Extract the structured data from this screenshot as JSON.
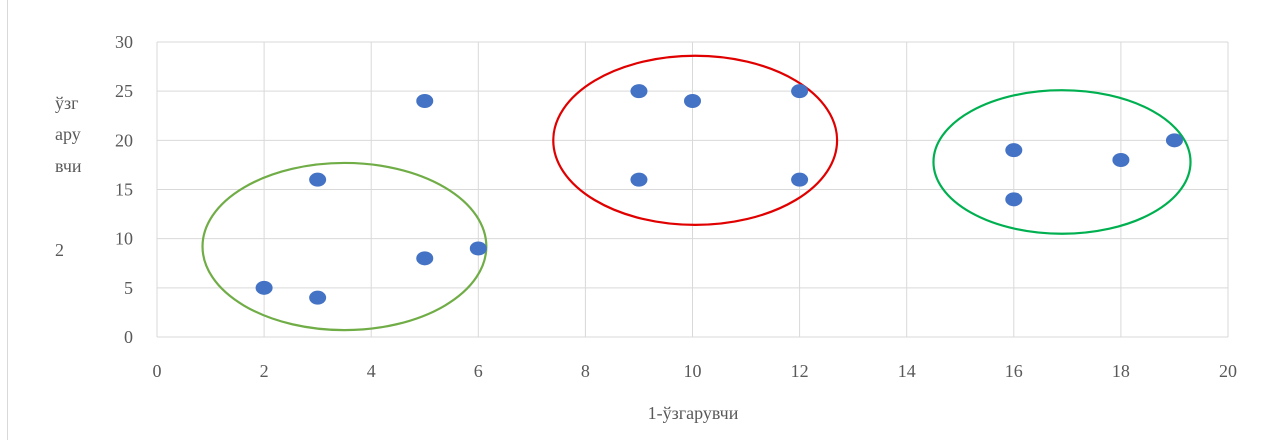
{
  "chart_data": {
    "type": "scatter",
    "title": "",
    "xlabel": "1-ўзгарувчи",
    "ylabel_lines": [
      "ўзг",
      "ару",
      "вчи",
      "2"
    ],
    "xlim": [
      0,
      20
    ],
    "ylim": [
      0,
      30
    ],
    "x_ticks": [
      0,
      2,
      4,
      6,
      8,
      10,
      12,
      14,
      16,
      18,
      20
    ],
    "y_ticks": [
      0,
      5,
      10,
      15,
      20,
      25,
      30
    ],
    "grid": true,
    "legend": "none",
    "point_color": "#4472c4",
    "series": [
      {
        "points": [
          {
            "x": 2,
            "y": 5
          },
          {
            "x": 3,
            "y": 4
          },
          {
            "x": 3,
            "y": 16
          },
          {
            "x": 5,
            "y": 8
          },
          {
            "x": 5,
            "y": 24
          },
          {
            "x": 6,
            "y": 9
          },
          {
            "x": 9,
            "y": 25
          },
          {
            "x": 9,
            "y": 16
          },
          {
            "x": 10,
            "y": 24
          },
          {
            "x": 12,
            "y": 25
          },
          {
            "x": 12,
            "y": 16
          },
          {
            "x": 16,
            "y": 19
          },
          {
            "x": 16,
            "y": 14
          },
          {
            "x": 18,
            "y": 18
          },
          {
            "x": 19,
            "y": 20
          }
        ]
      }
    ],
    "cluster_ellipses": [
      {
        "color": "#70ad47",
        "cx": 3.5,
        "cy": 9.2,
        "rx": 2.65,
        "ry": 8.5
      },
      {
        "color": "#e00000",
        "cx": 10.05,
        "cy": 20.0,
        "rx": 2.65,
        "ry": 8.6
      },
      {
        "color": "#00b050",
        "cx": 16.9,
        "cy": 17.8,
        "rx": 2.4,
        "ry": 7.3
      }
    ]
  }
}
